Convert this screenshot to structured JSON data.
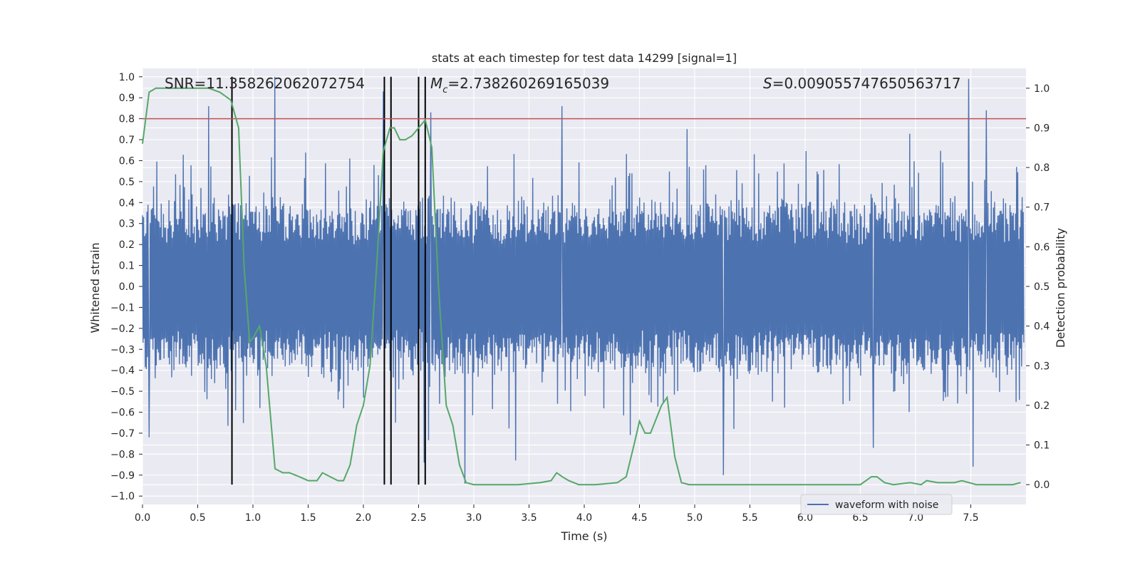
{
  "chart_data": {
    "type": "line",
    "title": "stats at each timestep for test data 14299 [signal=1]",
    "xlabel": "Time (s)",
    "ylabel_left": "Whitened strain",
    "ylabel_right": "Detection probability",
    "xlim": [
      0.0,
      8.0
    ],
    "ylim_left": [
      -1.04,
      1.04
    ],
    "ylim_right": [
      -0.05,
      1.05
    ],
    "x_ticks": [
      "0.0",
      "0.5",
      "1.0",
      "1.5",
      "2.0",
      "2.5",
      "3.0",
      "3.5",
      "4.0",
      "4.5",
      "5.0",
      "5.5",
      "6.0",
      "6.5",
      "7.0",
      "7.5"
    ],
    "y_ticks_left": [
      "1.0",
      "0.9",
      "0.8",
      "0.7",
      "0.6",
      "0.5",
      "0.4",
      "0.3",
      "0.2",
      "0.1",
      "0.0",
      "−0.1",
      "−0.2",
      "−0.3",
      "−0.4",
      "−0.5",
      "−0.6",
      "−0.7",
      "−0.8",
      "−0.9",
      "−1.0"
    ],
    "y_ticks_right": [
      "1.0",
      "0.9",
      "0.8",
      "0.7",
      "0.6",
      "0.5",
      "0.4",
      "0.3",
      "0.2",
      "0.1",
      "0.0"
    ],
    "grid": true,
    "legend_position": "bottom-right",
    "annotations": {
      "snr": "SNR=11.358262062072754",
      "mc_symbol": "M",
      "mc_sub": "c",
      "mc_value": "=2.738260269165039",
      "s_symbol": "S",
      "s_value": "=0.009055747650563717"
    },
    "threshold_line": {
      "y": 0.8,
      "color": "#c44e52"
    },
    "vertical_lines_x": [
      0.81,
      2.19,
      2.25,
      2.5,
      2.56
    ],
    "series": [
      {
        "name": "waveform with noise",
        "color": "#4c72b0",
        "axis": "left",
        "sample_count": 1600,
        "amplitude_envelope": 0.45,
        "notable_peaks": [
          {
            "x": 0.6,
            "y": 0.86
          },
          {
            "x": 1.2,
            "y": 1.0
          },
          {
            "x": 2.18,
            "y": 0.93
          },
          {
            "x": 2.61,
            "y": 0.83
          },
          {
            "x": 3.8,
            "y": 0.86
          },
          {
            "x": 7.48,
            "y": 0.99
          },
          {
            "x": 7.64,
            "y": 0.84
          },
          {
            "x": 2.92,
            "y": -0.94
          },
          {
            "x": 5.26,
            "y": -0.9
          },
          {
            "x": 7.52,
            "y": -0.86
          },
          {
            "x": 3.38,
            "y": -0.83
          },
          {
            "x": 2.55,
            "y": -0.84
          },
          {
            "x": 0.06,
            "y": -0.72
          },
          {
            "x": 6.62,
            "y": -0.77
          }
        ]
      },
      {
        "name": "",
        "color": "#55a868",
        "axis": "right",
        "x": [
          0.0,
          0.06,
          0.12,
          0.2,
          0.3,
          0.4,
          0.5,
          0.6,
          0.7,
          0.75,
          0.8,
          0.87,
          0.92,
          0.97,
          1.0,
          1.06,
          1.12,
          1.2,
          1.27,
          1.33,
          1.42,
          1.5,
          1.58,
          1.63,
          1.7,
          1.77,
          1.82,
          1.88,
          1.94,
          2.0,
          2.06,
          2.12,
          2.18,
          2.24,
          2.28,
          2.33,
          2.38,
          2.44,
          2.5,
          2.56,
          2.62,
          2.68,
          2.75,
          2.81,
          2.87,
          2.93,
          3.0,
          3.2,
          3.4,
          3.6,
          3.7,
          3.75,
          3.8,
          3.86,
          3.95,
          4.1,
          4.3,
          4.38,
          4.45,
          4.5,
          4.55,
          4.6,
          4.7,
          4.75,
          4.82,
          4.88,
          4.95,
          5.1,
          5.5,
          6.0,
          6.5,
          6.6,
          6.65,
          6.72,
          6.8,
          6.95,
          7.05,
          7.1,
          7.2,
          7.35,
          7.42,
          7.55,
          7.7,
          7.8,
          7.88,
          7.95
        ],
        "y": [
          0.86,
          0.99,
          1.0,
          1.0,
          1.0,
          1.0,
          1.0,
          1.0,
          0.99,
          0.98,
          0.97,
          0.9,
          0.55,
          0.36,
          0.37,
          0.4,
          0.3,
          0.04,
          0.03,
          0.03,
          0.02,
          0.01,
          0.01,
          0.03,
          0.02,
          0.01,
          0.01,
          0.05,
          0.15,
          0.2,
          0.3,
          0.55,
          0.84,
          0.9,
          0.9,
          0.87,
          0.87,
          0.88,
          0.9,
          0.92,
          0.85,
          0.5,
          0.2,
          0.15,
          0.05,
          0.005,
          0.0,
          0.0,
          0.0,
          0.005,
          0.01,
          0.03,
          0.02,
          0.01,
          0.0,
          0.0,
          0.005,
          0.02,
          0.1,
          0.16,
          0.13,
          0.13,
          0.2,
          0.22,
          0.07,
          0.005,
          0.0,
          0.0,
          0.0,
          0.0,
          0.0,
          0.02,
          0.02,
          0.005,
          0.0,
          0.005,
          0.0,
          0.01,
          0.005,
          0.005,
          0.01,
          0.0,
          0.0,
          0.0,
          0.0,
          0.005
        ]
      }
    ]
  }
}
